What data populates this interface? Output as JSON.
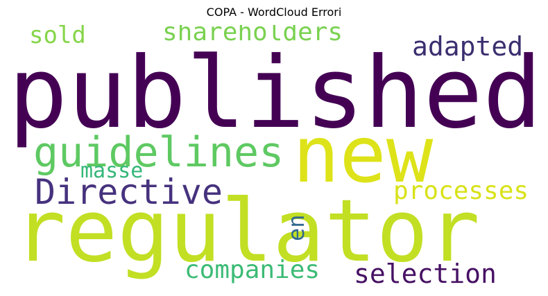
{
  "title": "COPA - WordCloud Errori",
  "words": [
    {
      "text": "published",
      "color": "#440154"
    },
    {
      "text": "new",
      "color": "#dde318"
    },
    {
      "text": "regulator",
      "color": "#c2df23"
    },
    {
      "text": "guidelines",
      "color": "#5ec962"
    },
    {
      "text": "Directive",
      "color": "#46327e"
    },
    {
      "text": "shareholders",
      "color": "#7ad151"
    },
    {
      "text": "sold",
      "color": "#86d549"
    },
    {
      "text": "adapted",
      "color": "#3b2f6f"
    },
    {
      "text": "processes",
      "color": "#d8e219"
    },
    {
      "text": "masse",
      "color": "#35b779"
    },
    {
      "text": "en",
      "color": "#31688e"
    },
    {
      "text": "companies",
      "color": "#3bbb75"
    },
    {
      "text": "selection",
      "color": "#471164"
    }
  ]
}
